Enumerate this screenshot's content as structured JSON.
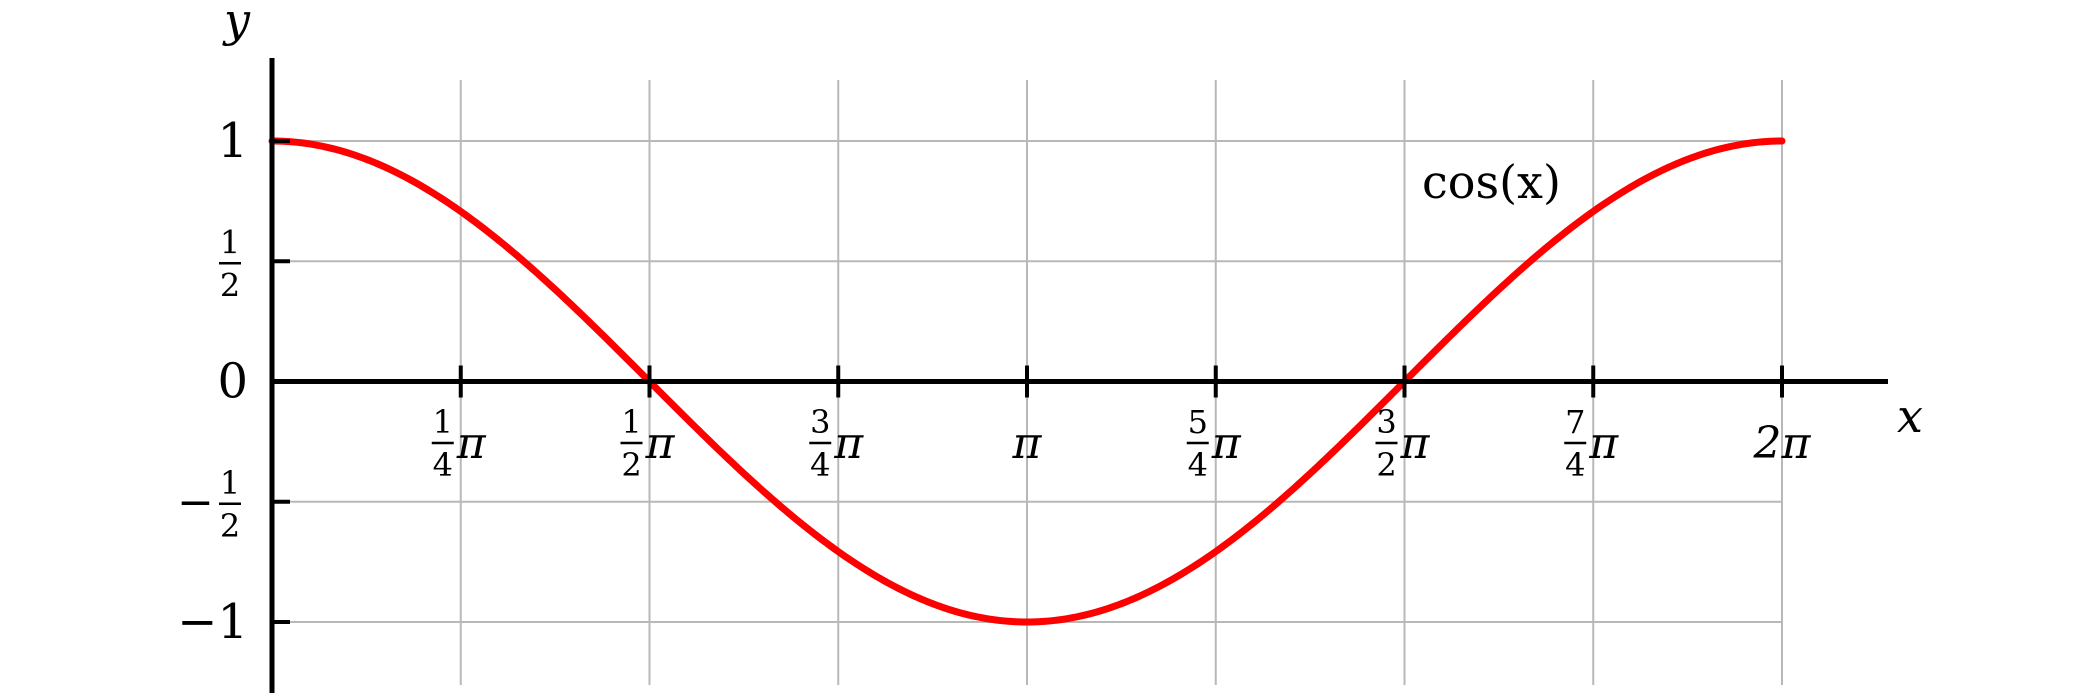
{
  "chart_data": {
    "type": "line",
    "function": "cos",
    "xlabel": "x",
    "ylabel": "y",
    "xlim": [
      0,
      6.283185307
    ],
    "ylim": [
      -1,
      1
    ],
    "grid": true,
    "color": "#ff0000",
    "series": [
      {
        "name": "cos(x)",
        "function": "cos",
        "x_range": [
          0,
          6.283185307
        ]
      }
    ],
    "x_ticks": [
      {
        "value": 0.785398,
        "num": "1",
        "den": "4",
        "suffix": "π"
      },
      {
        "value": 1.570796,
        "num": "1",
        "den": "2",
        "suffix": "π"
      },
      {
        "value": 2.356194,
        "num": "3",
        "den": "4",
        "suffix": "π"
      },
      {
        "value": 3.141593,
        "num": "",
        "den": "",
        "suffix": "π"
      },
      {
        "value": 3.926991,
        "num": "5",
        "den": "4",
        "suffix": "π"
      },
      {
        "value": 4.712389,
        "num": "3",
        "den": "2",
        "suffix": "π"
      },
      {
        "value": 5.497787,
        "num": "7",
        "den": "4",
        "suffix": "π"
      },
      {
        "value": 6.283185,
        "num": "",
        "den": "",
        "suffix": "2π"
      }
    ],
    "y_ticks": [
      {
        "value": 1,
        "sign": "",
        "num": "",
        "den": "",
        "text": "1"
      },
      {
        "value": 0.5,
        "sign": "",
        "num": "1",
        "den": "2",
        "text": ""
      },
      {
        "value": 0,
        "sign": "",
        "num": "",
        "den": "",
        "text": "0"
      },
      {
        "value": -0.5,
        "sign": "−",
        "num": "1",
        "den": "2",
        "text": ""
      },
      {
        "value": -1,
        "sign": "",
        "num": "",
        "den": "",
        "text": "−1"
      }
    ]
  }
}
